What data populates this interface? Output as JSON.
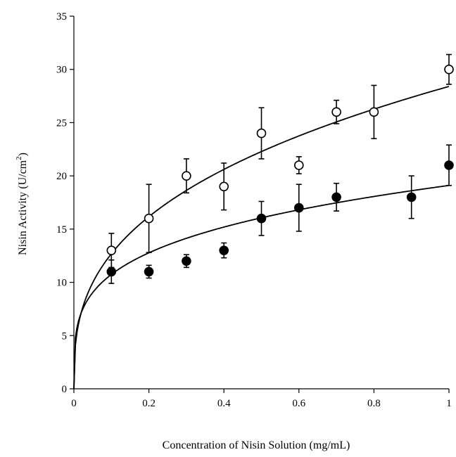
{
  "chart_data": {
    "type": "scatter",
    "title": "",
    "xlabel": "Concentration of Nisin Solution (mg/mL)",
    "ylabel_main": "Nisin Activity (U/cm",
    "ylabel_sup": "2",
    "ylabel_close": ")",
    "xlim": [
      0,
      1
    ],
    "ylim": [
      0,
      35
    ],
    "x_ticks": [
      0,
      0.2,
      0.4,
      0.6,
      0.8,
      1
    ],
    "x_tick_labels": [
      "0",
      "0.2",
      "0.4",
      "0.6",
      "0.8",
      "1"
    ],
    "y_ticks": [
      0,
      5,
      10,
      15,
      20,
      25,
      30,
      35
    ],
    "y_tick_labels": [
      "0",
      "5",
      "10",
      "15",
      "20",
      "25",
      "30",
      "35"
    ],
    "grid": false,
    "series": [
      {
        "marker": "open-circle",
        "color": "#000000",
        "x": [
          0.1,
          0.2,
          0.3,
          0.4,
          0.5,
          0.6,
          0.7,
          0.8,
          1.0
        ],
        "y": [
          13,
          16,
          20,
          19,
          24,
          21,
          26,
          26,
          30
        ],
        "error": [
          1.6,
          3.2,
          1.6,
          2.2,
          2.4,
          0.8,
          1.1,
          2.5,
          1.4
        ],
        "fit_curve": {
          "a": 28.4,
          "b": 0.35
        }
      },
      {
        "marker": "filled-circle",
        "color": "#000000",
        "x": [
          0.1,
          0.2,
          0.3,
          0.4,
          0.5,
          0.6,
          0.7,
          0.9,
          1.0
        ],
        "y": [
          11,
          11,
          12,
          13,
          16,
          17,
          18,
          18,
          21
        ],
        "error": [
          1.1,
          0.6,
          0.6,
          0.7,
          1.6,
          2.2,
          1.3,
          2.0,
          1.9
        ],
        "fit_curve": {
          "a": 19.1,
          "b": 0.25
        }
      }
    ]
  }
}
